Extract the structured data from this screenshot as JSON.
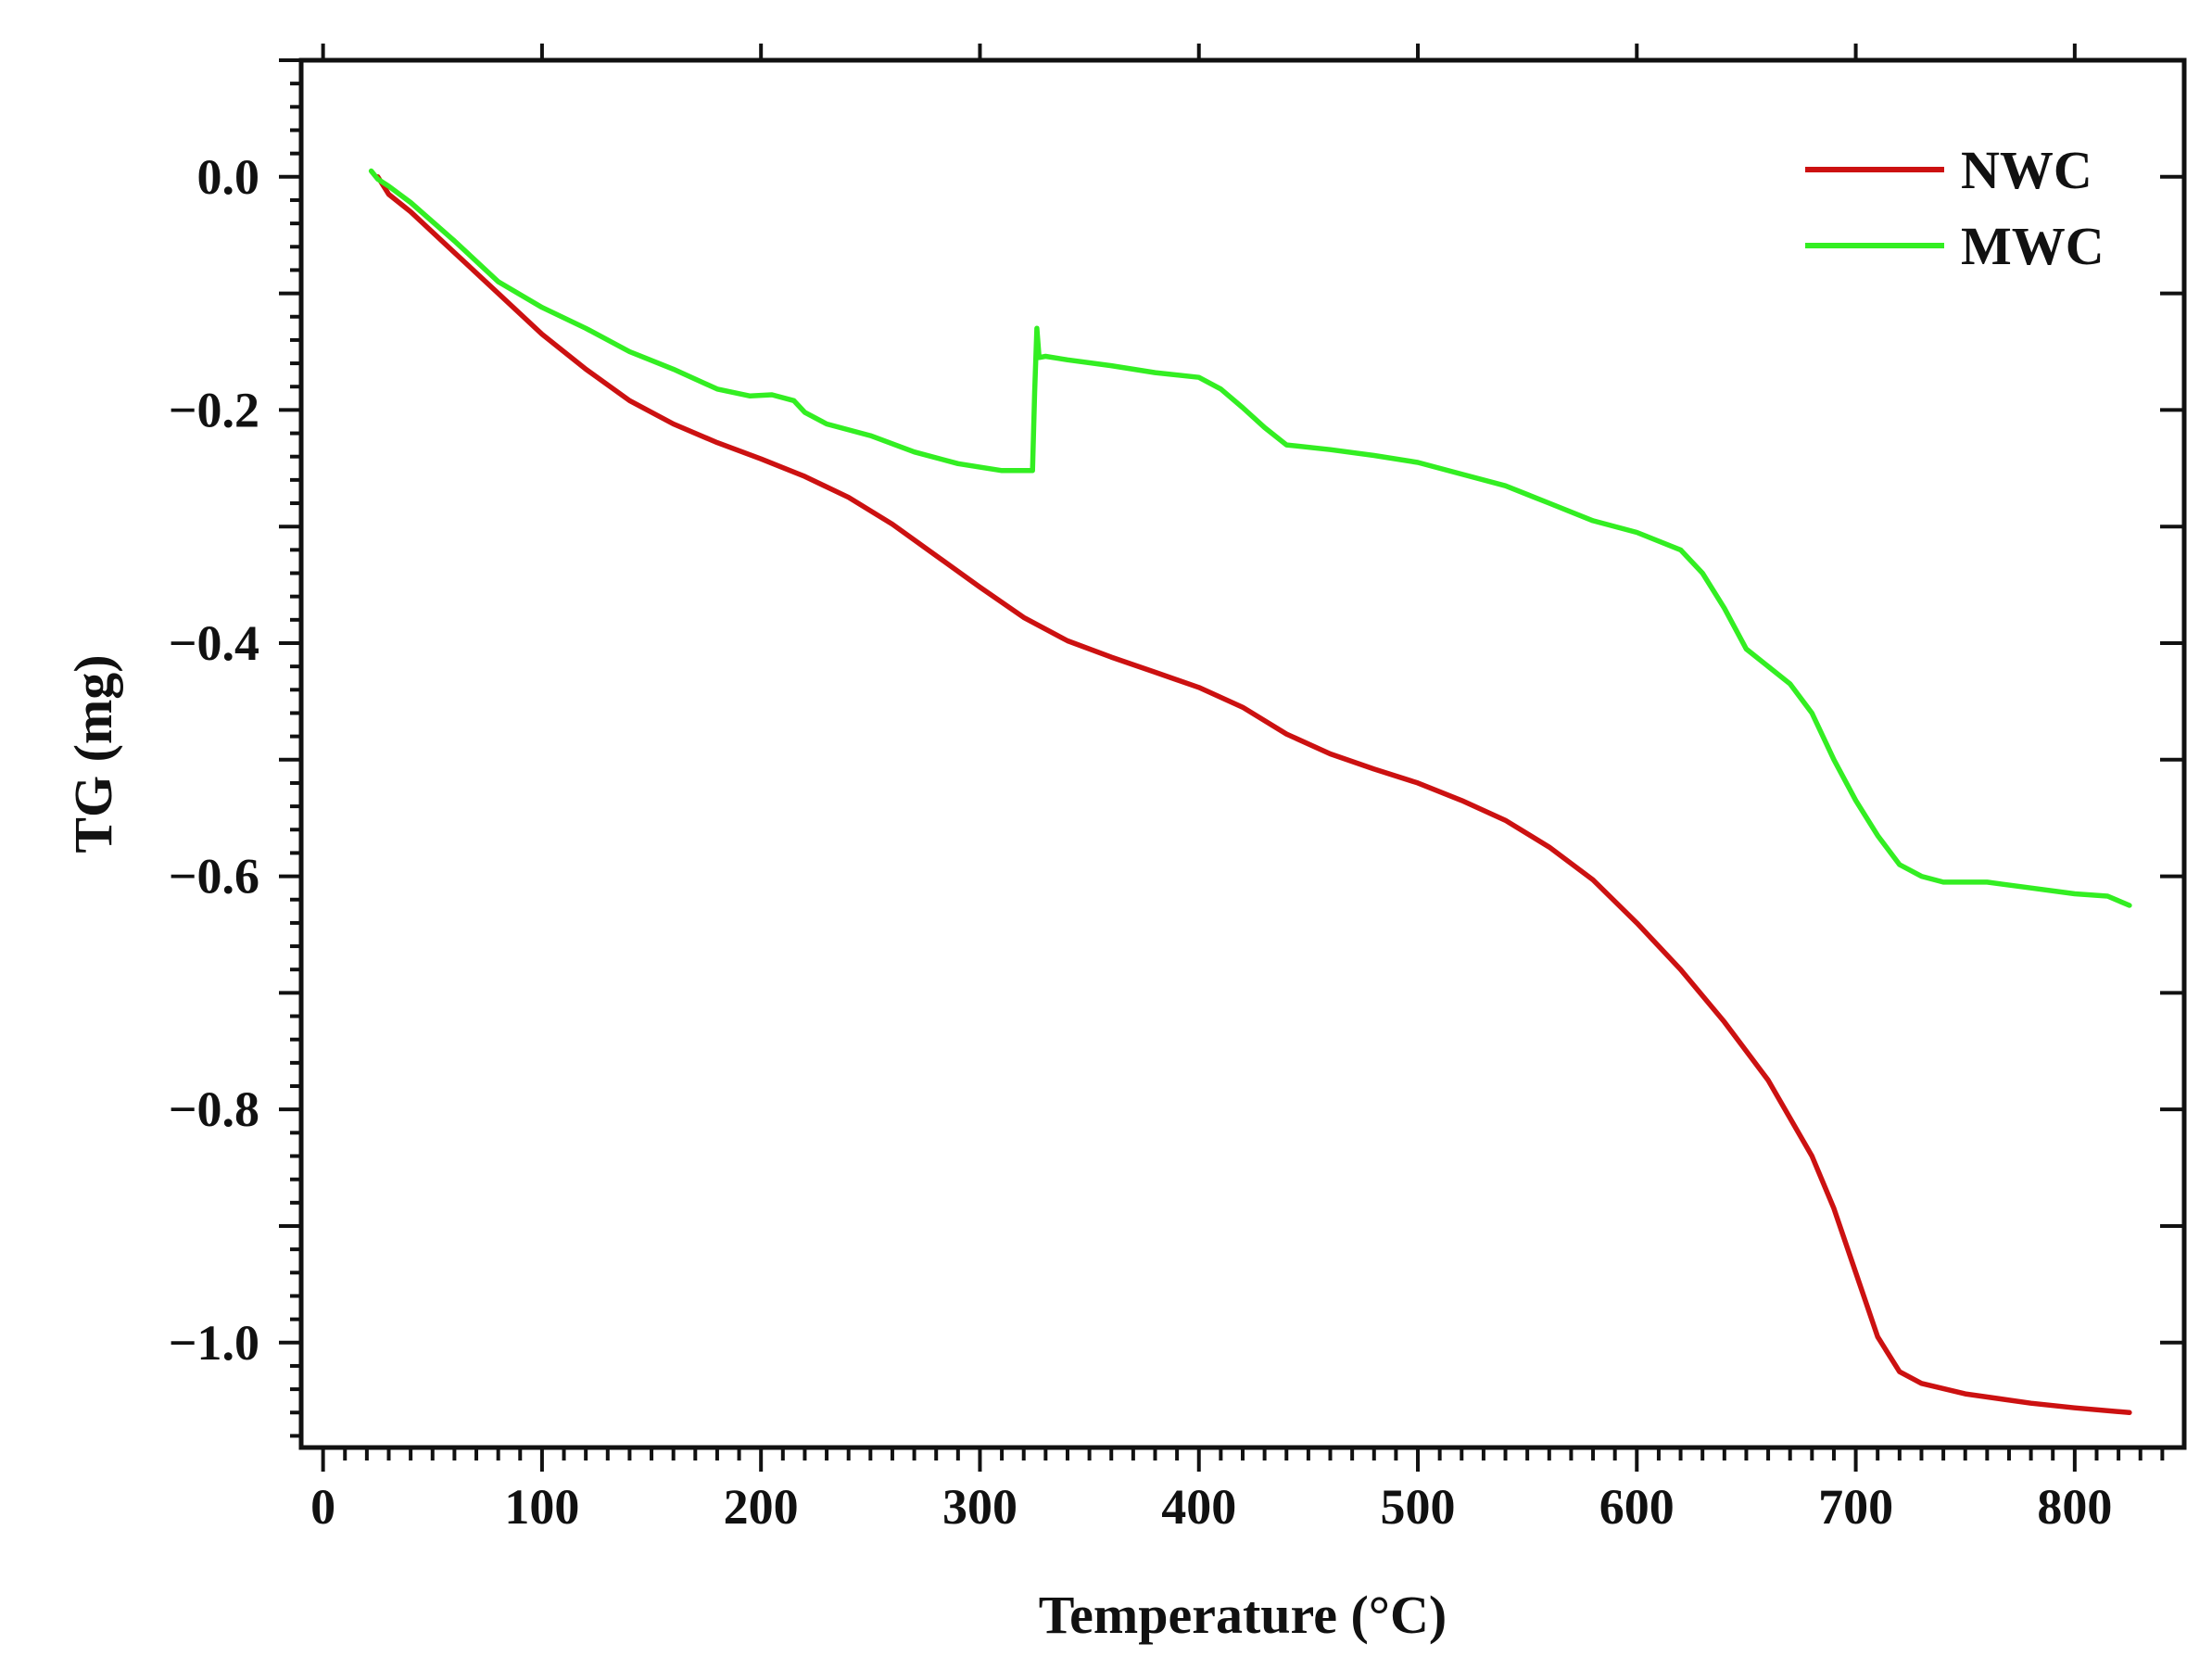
{
  "chart_data": {
    "type": "line",
    "title": "",
    "xlabel": "Temperature (°C)",
    "ylabel": "TG (mg)",
    "xlim": [
      -10,
      850
    ],
    "ylim": [
      -1.09,
      0.1
    ],
    "x_ticks": [
      0,
      100,
      200,
      300,
      400,
      500,
      600,
      700,
      800
    ],
    "x_tick_labels": [
      "0",
      "100",
      "200",
      "300",
      "400",
      "500",
      "600",
      "700",
      "800"
    ],
    "y_ticks": [
      0.0,
      -0.2,
      -0.4,
      -0.6,
      -0.8,
      -1.0
    ],
    "y_tick_labels": [
      "0.0",
      "−0.2",
      "−0.4",
      "−0.6",
      "−0.8",
      "−1.0"
    ],
    "grid": false,
    "legend_position": "top-right",
    "series": [
      {
        "name": "NWC",
        "color": "#cc1111",
        "x": [
          25,
          30,
          40,
          60,
          80,
          100,
          120,
          140,
          160,
          180,
          200,
          220,
          240,
          260,
          280,
          300,
          320,
          340,
          360,
          380,
          400,
          420,
          440,
          460,
          480,
          500,
          520,
          540,
          560,
          580,
          600,
          620,
          640,
          660,
          680,
          690,
          700,
          710,
          720,
          730,
          750,
          780,
          800,
          825
        ],
        "y": [
          0.0,
          -0.015,
          -0.03,
          -0.065,
          -0.1,
          -0.135,
          -0.165,
          -0.192,
          -0.212,
          -0.228,
          -0.242,
          -0.257,
          -0.275,
          -0.298,
          -0.325,
          -0.352,
          -0.378,
          -0.398,
          -0.412,
          -0.425,
          -0.438,
          -0.455,
          -0.478,
          -0.495,
          -0.508,
          -0.52,
          -0.535,
          -0.552,
          -0.575,
          -0.603,
          -0.64,
          -0.68,
          -0.725,
          -0.775,
          -0.84,
          -0.885,
          -0.94,
          -0.995,
          -1.025,
          -1.035,
          -1.044,
          -1.052,
          -1.056,
          -1.06
        ]
      },
      {
        "name": "MWC",
        "color": "#33ee22",
        "x": [
          22,
          25,
          30,
          40,
          60,
          80,
          100,
          120,
          140,
          160,
          180,
          195,
          205,
          215,
          220,
          230,
          250,
          270,
          290,
          310,
          324,
          325,
          326,
          327,
          330,
          340,
          360,
          380,
          400,
          410,
          420,
          430,
          440,
          460,
          480,
          500,
          520,
          540,
          560,
          580,
          600,
          620,
          630,
          640,
          650,
          660,
          670,
          680,
          690,
          700,
          710,
          720,
          730,
          740,
          760,
          780,
          800,
          815,
          825
        ],
        "y": [
          0.005,
          -0.002,
          -0.008,
          -0.022,
          -0.055,
          -0.09,
          -0.112,
          -0.13,
          -0.15,
          -0.165,
          -0.182,
          -0.188,
          -0.187,
          -0.192,
          -0.202,
          -0.212,
          -0.222,
          -0.236,
          -0.246,
          -0.252,
          -0.252,
          -0.185,
          -0.13,
          -0.155,
          -0.154,
          -0.157,
          -0.162,
          -0.168,
          -0.172,
          -0.182,
          -0.198,
          -0.215,
          -0.23,
          -0.234,
          -0.239,
          -0.245,
          -0.255,
          -0.265,
          -0.28,
          -0.295,
          -0.305,
          -0.32,
          -0.34,
          -0.37,
          -0.405,
          -0.42,
          -0.435,
          -0.46,
          -0.5,
          -0.535,
          -0.565,
          -0.59,
          -0.6,
          -0.605,
          -0.605,
          -0.61,
          -0.615,
          -0.617,
          -0.625
        ]
      }
    ]
  }
}
